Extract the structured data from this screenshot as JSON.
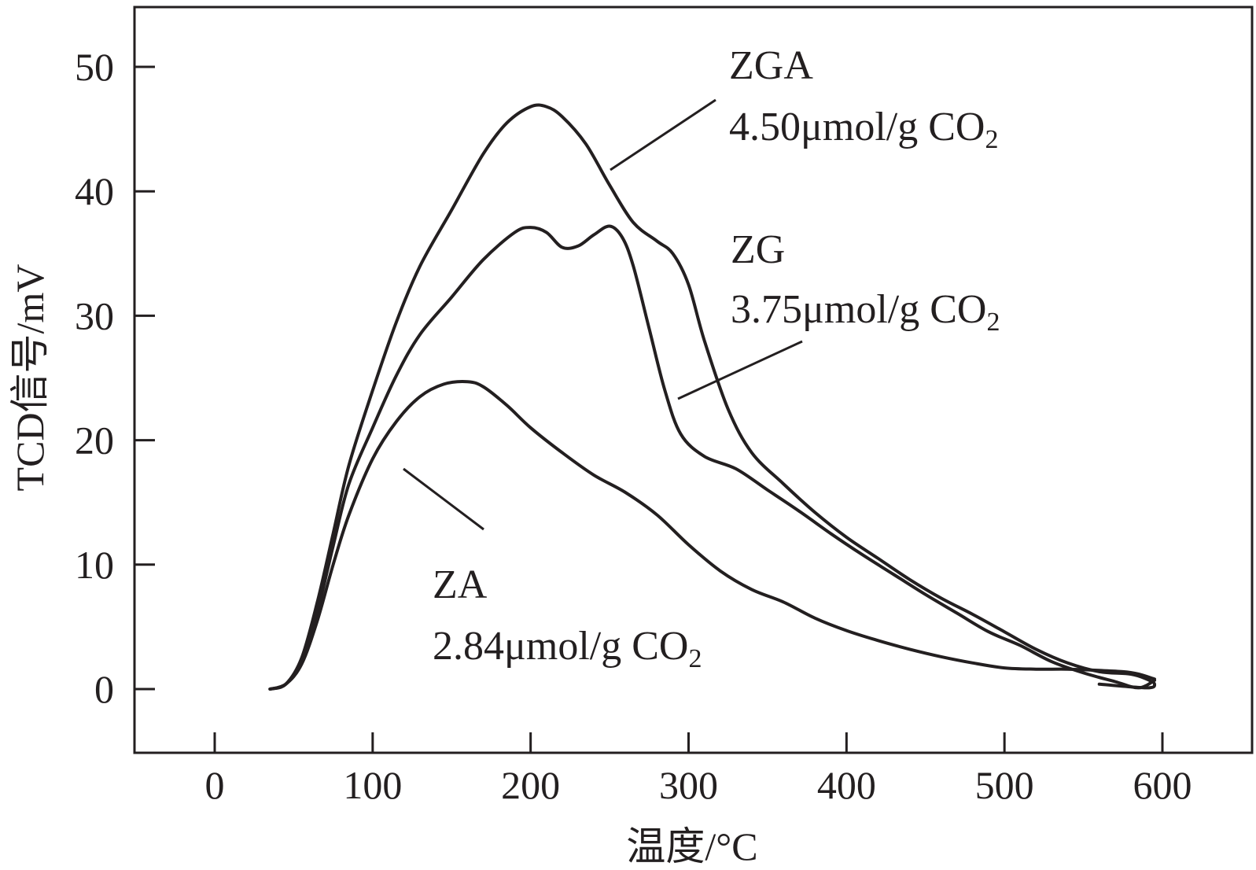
{
  "chart_data": {
    "type": "line",
    "title": "",
    "xlabel": "温度/°C",
    "ylabel": "TCD信号/mV",
    "xlim": [
      -50,
      650
    ],
    "ylim": [
      -5,
      55
    ],
    "xticks": [
      0,
      100,
      200,
      300,
      400,
      500,
      600
    ],
    "yticks": [
      0,
      10,
      20,
      30,
      40,
      50
    ],
    "grid": false,
    "colors": {
      "axis": "#231f20",
      "line": "#231f20"
    },
    "series": [
      {
        "name": "ZGA",
        "annotation": {
          "label": "ZGA",
          "value": "4.50μmol/g CO",
          "subscript": "2"
        },
        "x": [
          35,
          45,
          55,
          65,
          75,
          85,
          100,
          115,
          130,
          150,
          170,
          185,
          200,
          210,
          220,
          235,
          250,
          265,
          280,
          290,
          300,
          310,
          325,
          340,
          360,
          380,
          400,
          420,
          440,
          460,
          480,
          500,
          520,
          540,
          560,
          580,
          590,
          595,
          590,
          560
        ],
        "y": [
          0,
          0.4,
          2.5,
          7,
          12.5,
          18,
          24,
          29.5,
          34,
          38.5,
          43,
          45.5,
          46.8,
          46.8,
          46,
          43.8,
          40.5,
          37.5,
          36,
          35,
          32.5,
          28,
          22.5,
          19,
          16.5,
          14.2,
          12.2,
          10.5,
          8.8,
          7.3,
          6,
          4.6,
          3.2,
          2.1,
          1.4,
          1.2,
          0.8,
          0.4,
          0.1,
          0.4
        ]
      },
      {
        "name": "ZG",
        "annotation": {
          "label": "ZG",
          "value": "3.75μmol/g CO",
          "subscript": "2"
        },
        "x": [
          35,
          45,
          55,
          65,
          75,
          85,
          100,
          115,
          130,
          150,
          170,
          190,
          200,
          210,
          220,
          230,
          240,
          250,
          258,
          265,
          275,
          285,
          295,
          310,
          330,
          350,
          370,
          390,
          410,
          430,
          450,
          470,
          490,
          510,
          530,
          550,
          570,
          585,
          595
        ],
        "y": [
          0,
          0.4,
          2.2,
          6.2,
          11.5,
          16.5,
          21,
          25.2,
          28.5,
          31.5,
          34.5,
          36.7,
          37.1,
          36.7,
          35.5,
          35.6,
          36.5,
          37.2,
          36.3,
          34,
          29,
          24,
          20.5,
          18.7,
          17.7,
          16,
          14.3,
          12.5,
          10.8,
          9.2,
          7.6,
          6.1,
          4.6,
          3.5,
          2.2,
          1.3,
          0.6,
          0.1,
          0.7
        ]
      },
      {
        "name": "ZA",
        "annotation": {
          "label": "ZA",
          "value": "2.84μmol/g CO",
          "subscript": "2"
        },
        "x": [
          35,
          45,
          55,
          65,
          75,
          85,
          100,
          115,
          130,
          145,
          160,
          170,
          185,
          200,
          220,
          240,
          260,
          280,
          300,
          320,
          340,
          360,
          380,
          400,
          420,
          440,
          460,
          480,
          500,
          520,
          540,
          560,
          575,
          585,
          595
        ],
        "y": [
          0,
          0.4,
          2,
          5.5,
          10,
          14,
          18.5,
          21.5,
          23.5,
          24.5,
          24.7,
          24.3,
          22.8,
          21,
          19,
          17.2,
          15.8,
          14,
          11.6,
          9.5,
          8,
          7,
          5.7,
          4.7,
          3.9,
          3.2,
          2.6,
          2.1,
          1.7,
          1.6,
          1.6,
          1.5,
          1.4,
          1.2,
          0.8
        ]
      }
    ]
  }
}
